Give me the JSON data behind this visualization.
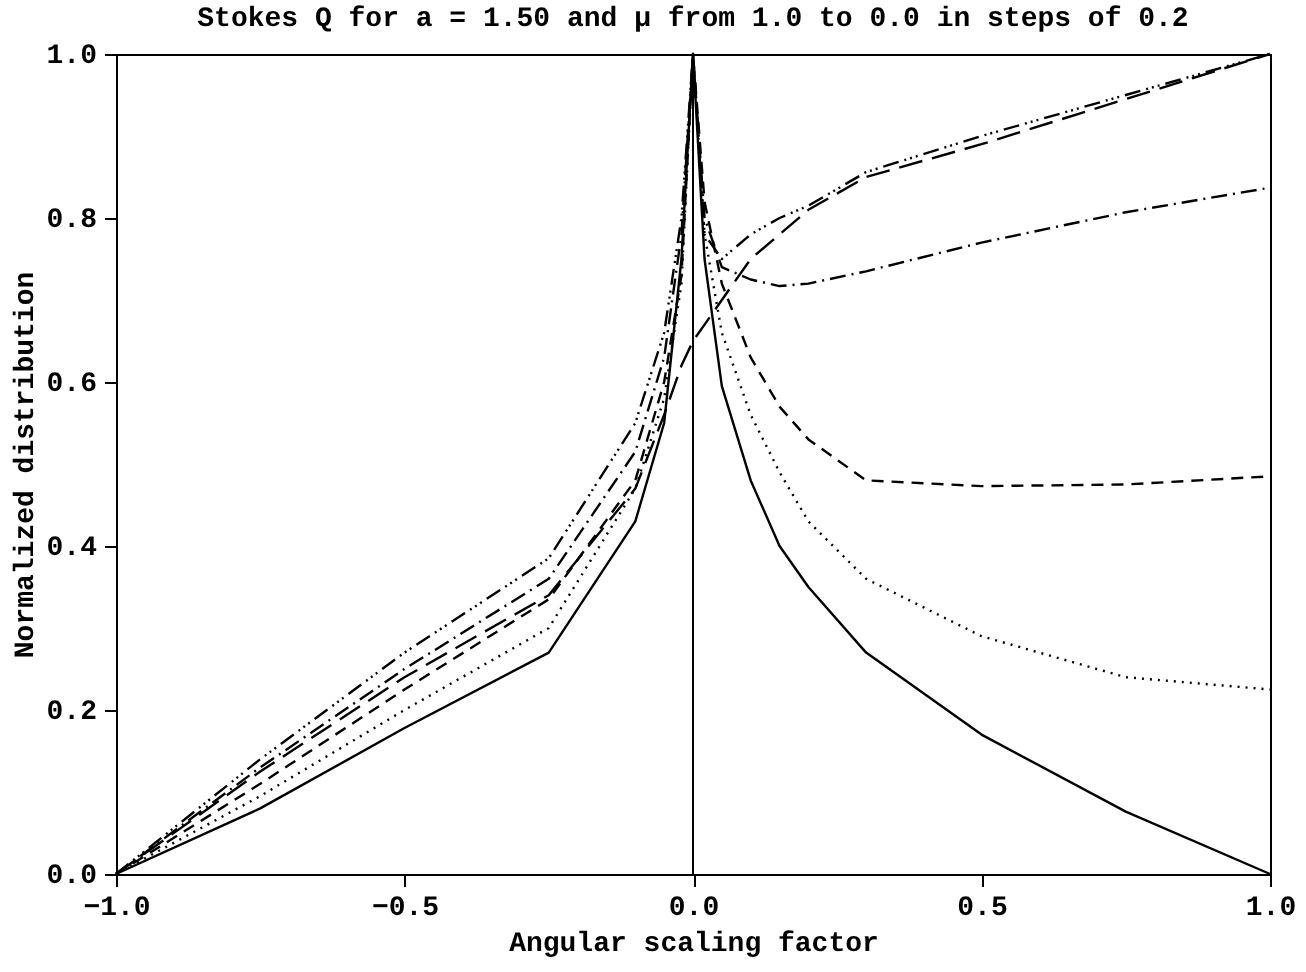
{
  "chart_data": {
    "type": "line",
    "title": "Stokes Q for a = 1.50 and μ from 1.0 to 0.0 in steps of 0.2",
    "xlabel": "Angular scaling factor",
    "ylabel": "Normalized distribution",
    "x": [
      -1,
      -0.75,
      -0.5,
      -0.25,
      -0.1,
      -0.05,
      -0.02,
      0,
      0.02,
      0.05,
      0.1,
      0.15,
      0.2,
      0.3,
      0.5,
      0.75,
      1
    ],
    "series": [
      {
        "color": "#000000",
        "line_style": "solid",
        "values": [
          0,
          0.08,
          0.178,
          0.27,
          0.43,
          0.55,
          0.75,
          1,
          0.75,
          0.595,
          0.48,
          0.4,
          0.35,
          0.27,
          0.17,
          0.076,
          0
        ]
      },
      {
        "color": "#000000",
        "line_style": "dotted",
        "values": [
          0,
          0.095,
          0.2,
          0.3,
          0.47,
          0.58,
          0.72,
          1,
          0.78,
          0.66,
          0.56,
          0.49,
          0.43,
          0.36,
          0.29,
          0.24,
          0.225
        ]
      },
      {
        "color": "#000000",
        "line_style": "dashed",
        "values": [
          0,
          0.11,
          0.225,
          0.335,
          0.48,
          0.6,
          0.73,
          1,
          0.82,
          0.72,
          0.63,
          0.57,
          0.53,
          0.48,
          0.473,
          0.475,
          0.485
        ]
      },
      {
        "color": "#000000",
        "line_style": "dashdot",
        "values": [
          0,
          0.13,
          0.25,
          0.36,
          0.515,
          0.63,
          0.78,
          1,
          0.8,
          0.74,
          0.725,
          0.717,
          0.72,
          0.735,
          0.77,
          0.807,
          0.837
        ]
      },
      {
        "color": "#000000",
        "line_style": "dashdotdotdot",
        "values": [
          0,
          0.14,
          0.27,
          0.385,
          0.55,
          0.66,
          0.8,
          1,
          0.78,
          0.75,
          0.78,
          0.8,
          0.815,
          0.856,
          0.9,
          0.95,
          1
        ]
      },
      {
        "color": "#000000",
        "line_style": "longdash",
        "values": [
          0,
          0.125,
          0.24,
          0.34,
          0.47,
          0.56,
          0.62,
          0.65,
          0.67,
          0.7,
          0.75,
          0.78,
          0.81,
          0.85,
          0.89,
          0.945,
          1
        ]
      }
    ],
    "xlim": [
      -1,
      1
    ],
    "ylim": [
      0,
      1
    ],
    "xticks": [
      {
        "value": -1,
        "label": "−1.0"
      },
      {
        "value": -0.5,
        "label": "−0.5"
      },
      {
        "value": 0,
        "label": "0.0"
      },
      {
        "value": 0.5,
        "label": "0.5"
      },
      {
        "value": 1,
        "label": "1.0"
      }
    ],
    "yticks": [
      {
        "value": 0,
        "label": "0.0"
      },
      {
        "value": 0.2,
        "label": "0.2"
      },
      {
        "value": 0.4,
        "label": "0.4"
      },
      {
        "value": 0.6,
        "label": "0.6"
      },
      {
        "value": 0.8,
        "label": "0.8"
      },
      {
        "value": 1,
        "label": "1.0"
      }
    ],
    "ref_lines": [
      {
        "axis": "x",
        "value": 0
      }
    ],
    "grid": false,
    "marker": "none"
  }
}
